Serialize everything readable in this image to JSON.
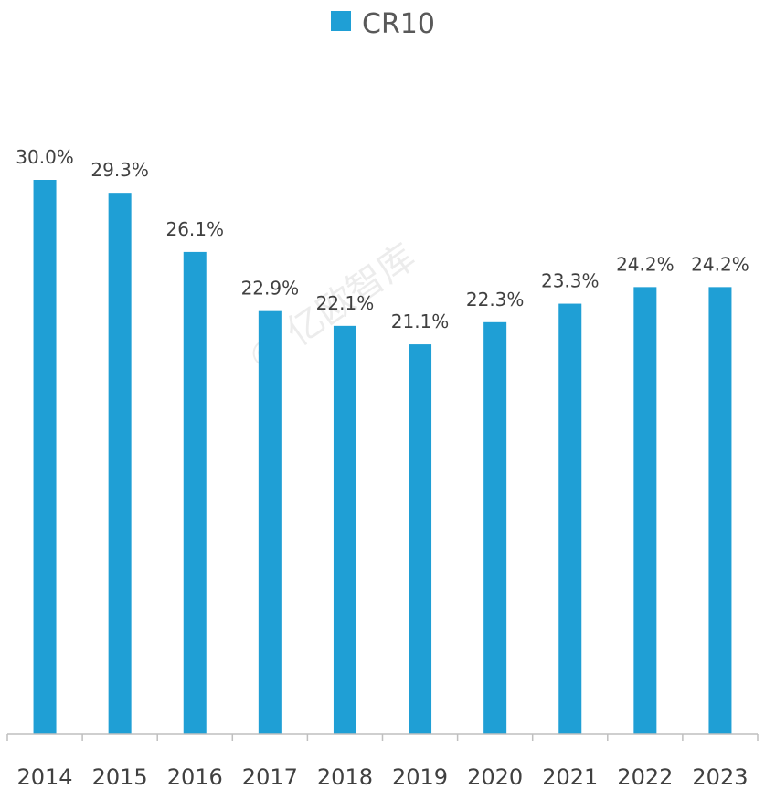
{
  "chart_data": {
    "type": "bar",
    "title": "",
    "xlabel": "",
    "ylabel": "",
    "categories": [
      "2014",
      "2015",
      "2016",
      "2017",
      "2018",
      "2019",
      "2020",
      "2021",
      "2022",
      "2023"
    ],
    "series": [
      {
        "name": "CR10",
        "values": [
          30.0,
          29.3,
          26.1,
          22.9,
          22.1,
          21.1,
          22.3,
          23.3,
          24.2,
          24.2
        ],
        "data_labels": [
          "30.0%",
          "29.3%",
          "26.1%",
          "22.9%",
          "22.1%",
          "21.1%",
          "22.3%",
          "23.3%",
          "24.2%",
          "24.2%"
        ]
      }
    ],
    "ylim": [
      0,
      30
    ],
    "grid": false,
    "legend_position": "top",
    "colors": {
      "bar": "#1f9fd5"
    }
  },
  "watermark": "© 亿欧智库"
}
